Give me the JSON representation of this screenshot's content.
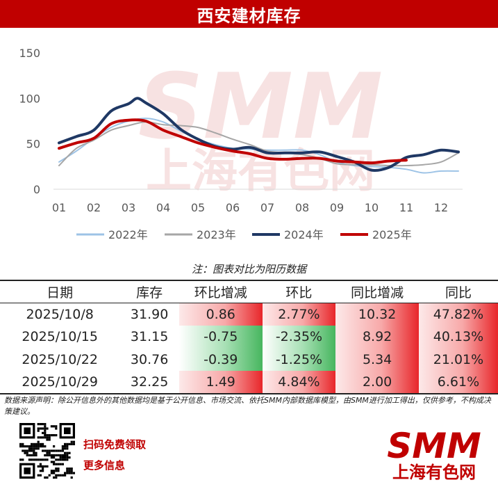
{
  "title": "西安建材库存",
  "note": "注：图表对比为阳历数据",
  "source_note": "数据来源声明：除公开信息外的其他数据均是基于公开信息、市场交流、依托SMM内部数据库模型，由SMM进行加工得出，仅供参考，不构成决策建议。",
  "cta_line1": "扫码免费领取",
  "cta_line2": "更多信息",
  "logo": {
    "text": "SMM",
    "subtext": "上海有色网"
  },
  "watermark": {
    "text": "SMM",
    "subtext": "上海有色网"
  },
  "colors": {
    "header": "#c00000",
    "s2022": "#9dc3e6",
    "s2023": "#a6a6a6",
    "s2024": "#1f3864",
    "s2025": "#c00000",
    "positive": "#e8262a",
    "negative": "#47b65f"
  },
  "chart_data": {
    "type": "line",
    "title": "西安建材库存",
    "x_ticks": [
      "01",
      "02",
      "03",
      "04",
      "05",
      "06",
      "07",
      "08",
      "09",
      "10",
      "11",
      "12"
    ],
    "y_ticks": [
      0,
      50,
      100,
      150
    ],
    "ylim": [
      0,
      150
    ],
    "xlim": [
      1,
      12.6
    ],
    "grid": false,
    "legend_position": "bottom",
    "series": [
      {
        "name": "2022年",
        "color": "#9dc3e6",
        "x": [
          1,
          1.5,
          2,
          2.5,
          3,
          3.5,
          4,
          4.5,
          5,
          5.5,
          6,
          6.5,
          7,
          7.5,
          8,
          8.5,
          9,
          9.5,
          10,
          10.5,
          11,
          11.5,
          12,
          12.5
        ],
        "y": [
          30,
          42,
          56,
          68,
          75,
          78,
          74,
          64,
          55,
          49,
          45,
          44,
          43,
          43,
          43,
          38,
          30,
          26,
          25,
          24,
          22,
          18,
          20,
          20
        ]
      },
      {
        "name": "2023年",
        "color": "#a6a6a6",
        "x": [
          1,
          1.5,
          2,
          2.5,
          3,
          3.5,
          4,
          4.5,
          5,
          5.5,
          6,
          6.5,
          7,
          7.5,
          8,
          8.5,
          9,
          9.5,
          10,
          10.5,
          11,
          11.5,
          12,
          12.5
        ],
        "y": [
          26,
          45,
          54,
          65,
          70,
          74,
          71,
          70,
          68,
          62,
          55,
          49,
          42,
          40,
          38,
          34,
          28,
          27,
          27,
          26,
          26,
          27,
          30,
          40
        ]
      },
      {
        "name": "2024年",
        "color": "#1f3864",
        "x": [
          1,
          1.5,
          2,
          2.5,
          3,
          3.25,
          3.5,
          4,
          4.5,
          5,
          5.5,
          6,
          6.5,
          7,
          7.5,
          8,
          8.5,
          9,
          9.5,
          10,
          10.5,
          11,
          11.5,
          12,
          12.5
        ],
        "y": [
          51,
          58,
          65,
          86,
          94,
          100,
          95,
          83,
          66,
          55,
          47,
          44,
          46,
          40,
          40,
          40,
          41,
          36,
          30,
          21,
          24,
          35,
          38,
          43,
          41
        ]
      },
      {
        "name": "2025年",
        "color": "#c00000",
        "x": [
          1,
          1.5,
          2,
          2.5,
          3,
          3.5,
          4,
          4.5,
          5,
          5.5,
          6,
          6.5,
          7,
          7.5,
          8,
          8.5,
          9,
          9.5,
          10,
          10.5,
          11
        ],
        "y": [
          45,
          51,
          56,
          72,
          76,
          75,
          65,
          58,
          51,
          46,
          42,
          39,
          34,
          33,
          34,
          34,
          31,
          30,
          29,
          31,
          32
        ]
      }
    ]
  },
  "table": {
    "headers": [
      "日期",
      "库存",
      "环比增减",
      "环比",
      "同比增减",
      "同比"
    ],
    "rows": [
      {
        "date": "2025/10/8",
        "stock": "31.90",
        "mom_change": "0.86",
        "mom_pct": "2.77%",
        "yoy_change": "10.32",
        "yoy_pct": "47.82%",
        "mom_sign": "pos",
        "yoy_sign": "pos"
      },
      {
        "date": "2025/10/15",
        "stock": "31.15",
        "mom_change": "-0.75",
        "mom_pct": "-2.35%",
        "yoy_change": "8.92",
        "yoy_pct": "40.13%",
        "mom_sign": "neg",
        "yoy_sign": "pos"
      },
      {
        "date": "2025/10/22",
        "stock": "30.76",
        "mom_change": "-0.39",
        "mom_pct": "-1.25%",
        "yoy_change": "5.34",
        "yoy_pct": "21.01%",
        "mom_sign": "neg",
        "yoy_sign": "pos"
      },
      {
        "date": "2025/10/29",
        "stock": "32.25",
        "mom_change": "1.49",
        "mom_pct": "4.84%",
        "yoy_change": "2.00",
        "yoy_pct": "6.61%",
        "mom_sign": "pos",
        "yoy_sign": "pos"
      }
    ]
  }
}
